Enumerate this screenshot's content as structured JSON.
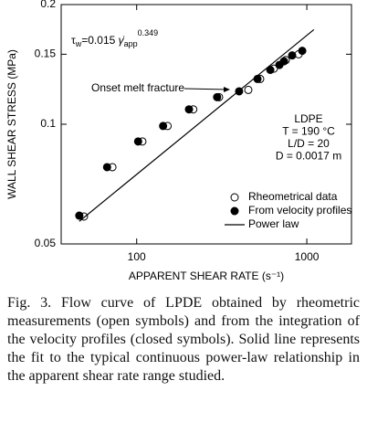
{
  "chart_data": {
    "type": "scatter",
    "x_scale": "log",
    "y_scale": "log",
    "x_label": "APPARENT SHEAR RATE (s⁻¹)",
    "y_label": "WALL SHEAR STRESS (MPa)",
    "xlim": [
      36,
      1830
    ],
    "ylim": [
      0.05,
      0.2
    ],
    "xticks": [
      100,
      1000
    ],
    "yticks": [
      0.05,
      0.1,
      0.15,
      0.2
    ],
    "equation": {
      "symbol": "τ",
      "symbol_sub": "w",
      "body": "=0.015 ",
      "rate": "γ̇",
      "rate_sub": "app",
      "exponent": "0.349"
    },
    "annotation": "Onset melt fracture",
    "conditions": [
      "LDPE",
      "T = 190 °C",
      "L/D = 20",
      "D = 0.0017 m"
    ],
    "legend_position": "lower right",
    "series": [
      {
        "name": "Rheometrical data",
        "marker": "open",
        "color": "#000000",
        "x": [
          49,
          72,
          108,
          152,
          215,
          305,
          453,
          532,
          640,
          752,
          895
        ],
        "values": [
          0.0586,
          0.078,
          0.0905,
          0.099,
          0.109,
          0.117,
          0.122,
          0.13,
          0.138,
          0.145,
          0.15
        ]
      },
      {
        "name": "From velocity profiles",
        "marker": "filled",
        "color": "#000000",
        "x": [
          46,
          67,
          102,
          143,
          203,
          297,
          400,
          513,
          610,
          690,
          734,
          820,
          940
        ],
        "values": [
          0.0589,
          0.078,
          0.0905,
          0.099,
          0.109,
          0.117,
          0.121,
          0.13,
          0.137,
          0.141,
          0.144,
          0.149,
          0.153
        ]
      },
      {
        "name": "Power law",
        "marker": "line",
        "color": "#000000",
        "x": [
          46,
          1100
        ],
        "values": [
          0.057,
          0.173
        ]
      }
    ]
  },
  "caption": "Fig. 3. Flow curve of LPDE obtained by rheometric measurements (open symbols) and from the integration of the velocity profiles (closed symbols). Solid line represents the fit to the typical continuous power-law relationship in the apparent shear rate range studied."
}
